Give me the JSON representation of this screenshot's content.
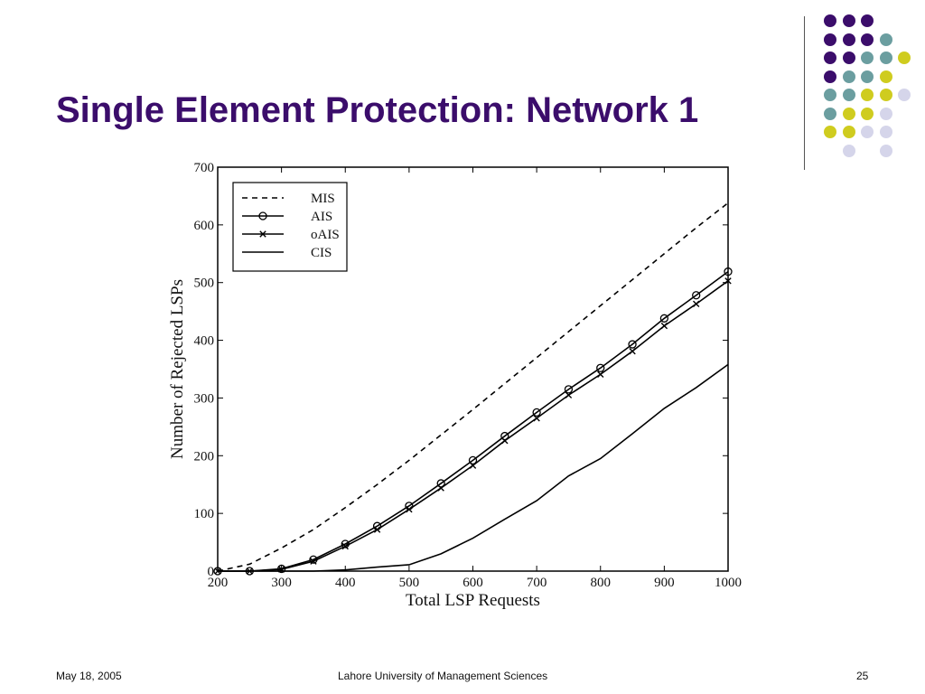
{
  "slide": {
    "title": "Single Element Protection: Network 1",
    "footer_date": "May 18, 2005",
    "footer_org": "Lahore University of Management Sciences",
    "page_number": "25"
  },
  "colors": {
    "title": "#3b0d6b",
    "dot_purple": "#3b0d6b",
    "dot_teal": "#6b9ea0",
    "dot_yellow": "#cfcc1f",
    "dot_lavender": "#d5d5ea"
  },
  "decoration": {
    "dot_grid": [
      [
        "purple",
        "purple",
        "purple",
        null,
        null
      ],
      [
        "purple",
        "purple",
        "purple",
        "teal",
        null
      ],
      [
        "purple",
        "purple",
        "teal",
        "teal",
        "yellow"
      ],
      [
        "purple",
        "teal",
        "teal",
        "yellow",
        null
      ],
      [
        "teal",
        "teal",
        "yellow",
        "yellow",
        "lavender"
      ],
      [
        "teal",
        "yellow",
        "yellow",
        "lavender",
        null
      ],
      [
        "yellow",
        "yellow",
        "lavender",
        "lavender",
        null
      ],
      [
        null,
        "lavender",
        null,
        "lavender",
        null
      ]
    ]
  },
  "chart_data": {
    "type": "line",
    "title": "",
    "xlabel": "Total LSP Requests",
    "ylabel": "Number of Rejected LSPs",
    "xlim": [
      200,
      1000
    ],
    "ylim": [
      0,
      700
    ],
    "xticks": [
      200,
      300,
      400,
      500,
      600,
      700,
      800,
      900,
      1000
    ],
    "yticks": [
      0,
      100,
      200,
      300,
      400,
      500,
      600,
      700
    ],
    "grid": false,
    "legend_position": "top-left",
    "x": [
      200,
      250,
      300,
      350,
      400,
      450,
      500,
      550,
      600,
      650,
      700,
      750,
      800,
      850,
      900,
      950,
      1000
    ],
    "series": [
      {
        "name": "MIS",
        "style": "dashed",
        "marker": "none",
        "values": [
          0,
          12,
          40,
          72,
          110,
          150,
          192,
          236,
          280,
          325,
          370,
          415,
          460,
          505,
          550,
          595,
          638
        ]
      },
      {
        "name": "AIS",
        "style": "solid",
        "marker": "circle",
        "values": [
          0,
          0,
          4,
          20,
          47,
          78,
          113,
          152,
          192,
          234,
          275,
          315,
          352,
          393,
          438,
          478,
          519
        ]
      },
      {
        "name": "oAIS",
        "style": "solid",
        "marker": "x",
        "values": [
          0,
          0,
          3,
          17,
          43,
          72,
          107,
          144,
          183,
          226,
          265,
          305,
          341,
          381,
          425,
          463,
          503
        ]
      },
      {
        "name": "CIS",
        "style": "solid",
        "marker": "none",
        "values": [
          0,
          0,
          0,
          0,
          2,
          7,
          11,
          30,
          57,
          90,
          122,
          165,
          195,
          238,
          282,
          318,
          358
        ]
      }
    ]
  }
}
